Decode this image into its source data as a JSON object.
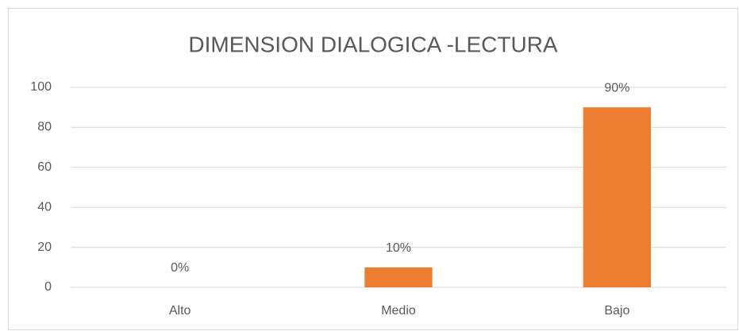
{
  "chart_data": {
    "type": "bar",
    "title": "DIMENSION DIALOGICA -LECTURA",
    "categories": [
      "Alto",
      "Medio",
      "Bajo"
    ],
    "values": [
      0,
      10,
      90
    ],
    "value_labels": [
      "0%",
      "10%",
      "90%"
    ],
    "color": "#ed7d31",
    "ylim": [
      0,
      100
    ],
    "yticks": [
      0,
      20,
      40,
      60,
      80,
      100
    ],
    "grid": true
  }
}
